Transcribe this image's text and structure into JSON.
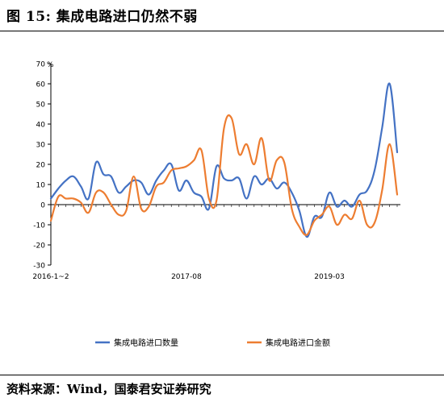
{
  "figure": {
    "title": "图 15:  集成电路进口仍然不弱",
    "source": "资料来源：Wind，国泰君安证券研究"
  },
  "chart_data": {
    "type": "line",
    "title": "",
    "unit_label": "%",
    "ylim": [
      -30,
      70
    ],
    "yticks": [
      70,
      60,
      50,
      40,
      30,
      20,
      10,
      0,
      -10,
      -20,
      -30
    ],
    "xtick_labels": [
      {
        "index": 0,
        "label": "2016-1~2"
      },
      {
        "index": 18,
        "label": "2017-08"
      },
      {
        "index": 37,
        "label": "2019-03"
      }
    ],
    "legend_position": "bottom",
    "series": [
      {
        "name": "集成电路进口数量",
        "color": "#4472C4",
        "values": [
          3,
          8,
          12,
          14,
          9,
          3,
          21,
          15,
          14,
          6,
          9,
          12,
          11,
          5,
          12,
          17,
          20,
          7,
          12,
          6,
          4,
          -2,
          19,
          13,
          12,
          13,
          3,
          14,
          10,
          13,
          8,
          11,
          6,
          -3,
          -16,
          -6,
          -6,
          6,
          -1,
          2,
          -1,
          5,
          7,
          17,
          38,
          60,
          26
        ]
      },
      {
        "name": "集成电路进口金额",
        "color": "#ED7D31",
        "values": [
          -8,
          4,
          3,
          3,
          1,
          -4,
          6,
          6,
          0,
          -5,
          -3,
          14,
          -2,
          -1,
          9,
          11,
          17,
          18,
          19,
          22,
          27,
          3,
          2,
          38,
          43,
          25,
          30,
          20,
          33,
          12,
          22,
          21,
          -2,
          -11,
          -15,
          -8,
          -5,
          -1,
          -10,
          -5,
          -7,
          2,
          -10,
          -9,
          7,
          30,
          5
        ]
      }
    ]
  }
}
